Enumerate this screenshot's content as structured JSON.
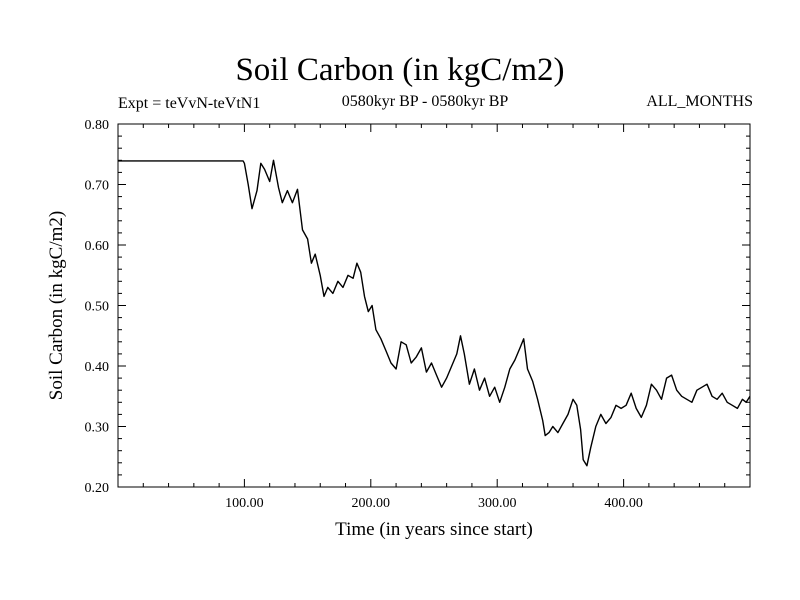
{
  "chart_data": {
    "type": "line",
    "title": "Soil Carbon (in kgC/m2)",
    "subtitle": "0580kyr BP - 0580kyr BP",
    "experiment": "Expt = teVvN-teVtN1",
    "period": "ALL_MONTHS",
    "xlabel": "Time (in years since start)",
    "ylabel": "Soil Carbon (in kgC/m2)",
    "xlim": [
      0,
      500
    ],
    "ylim": [
      0.2,
      0.8
    ],
    "xticks": [
      100,
      200,
      300,
      400
    ],
    "xtick_labels": [
      "100.00",
      "200.00",
      "300.00",
      "400.00"
    ],
    "yticks": [
      0.2,
      0.3,
      0.4,
      0.5,
      0.6,
      0.7,
      0.8
    ],
    "ytick_labels": [
      "0.20",
      "0.30",
      "0.40",
      "0.50",
      "0.60",
      "0.70",
      "0.80"
    ],
    "line_color": "#000000",
    "series": [
      {
        "x": [
          0,
          99,
          100,
          103,
          106,
          110,
          113,
          116,
          120,
          123,
          127,
          130,
          134,
          138,
          142,
          146,
          150,
          153,
          156,
          160,
          163,
          166,
          170,
          174,
          178,
          182,
          186,
          189,
          192,
          195,
          198,
          201,
          204,
          208,
          212,
          216,
          220,
          224,
          228,
          232,
          236,
          240,
          244,
          248,
          252,
          256,
          260,
          264,
          268,
          271,
          274,
          278,
          282,
          286,
          290,
          294,
          298,
          302,
          306,
          310,
          314,
          318,
          321,
          324,
          328,
          332,
          336,
          338,
          341,
          344,
          348,
          352,
          356,
          360,
          363,
          366,
          368,
          371,
          374,
          378,
          382,
          386,
          390,
          394,
          398,
          402,
          406,
          410,
          414,
          418,
          422,
          426,
          430,
          434,
          438,
          442,
          446,
          450,
          454,
          458,
          462,
          466,
          470,
          474,
          478,
          482,
          486,
          490,
          494,
          497,
          500
        ],
        "y": [
          0.739,
          0.739,
          0.735,
          0.7,
          0.66,
          0.69,
          0.735,
          0.725,
          0.705,
          0.74,
          0.695,
          0.67,
          0.69,
          0.67,
          0.692,
          0.625,
          0.61,
          0.57,
          0.585,
          0.55,
          0.515,
          0.53,
          0.52,
          0.54,
          0.53,
          0.55,
          0.545,
          0.57,
          0.555,
          0.515,
          0.49,
          0.5,
          0.46,
          0.445,
          0.425,
          0.405,
          0.395,
          0.44,
          0.435,
          0.405,
          0.415,
          0.43,
          0.39,
          0.405,
          0.385,
          0.365,
          0.38,
          0.4,
          0.42,
          0.45,
          0.42,
          0.37,
          0.395,
          0.36,
          0.38,
          0.35,
          0.365,
          0.34,
          0.365,
          0.395,
          0.41,
          0.43,
          0.445,
          0.395,
          0.375,
          0.345,
          0.31,
          0.285,
          0.29,
          0.3,
          0.29,
          0.305,
          0.32,
          0.345,
          0.335,
          0.295,
          0.245,
          0.235,
          0.265,
          0.3,
          0.32,
          0.305,
          0.315,
          0.335,
          0.33,
          0.335,
          0.355,
          0.33,
          0.315,
          0.335,
          0.37,
          0.36,
          0.345,
          0.38,
          0.385,
          0.36,
          0.35,
          0.345,
          0.34,
          0.36,
          0.365,
          0.37,
          0.35,
          0.345,
          0.355,
          0.34,
          0.335,
          0.33,
          0.345,
          0.34,
          0.35
        ]
      }
    ]
  }
}
